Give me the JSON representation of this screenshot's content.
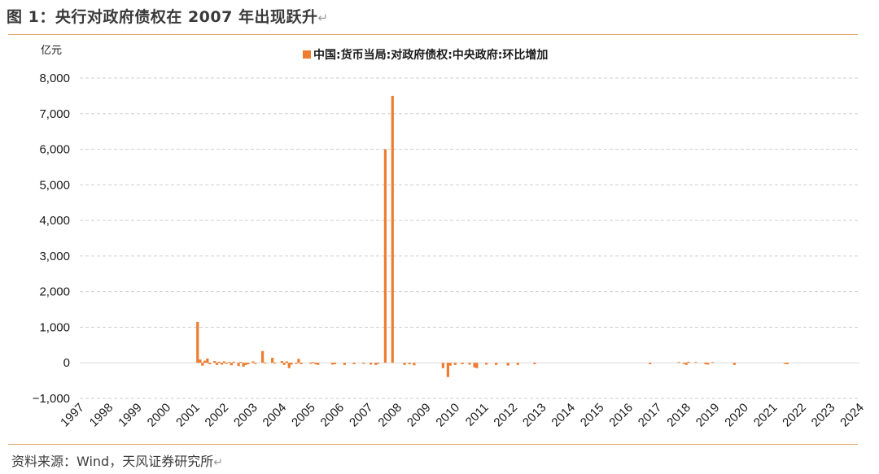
{
  "header": {
    "title": "图 1：央行对政府债权在 2007 年出现跃升",
    "return_mark": "↵"
  },
  "footer": {
    "source": "资料来源：Wind，天风证券研究所",
    "return_mark": "↵"
  },
  "colors": {
    "series": "#ED7D31",
    "grid": "#cfcfcf",
    "rule": "#e8a566"
  },
  "chart_data": {
    "type": "bar",
    "unit_label": "亿元",
    "grid": "horizontal-dashed",
    "legend_position": "top-center",
    "ylim": [
      -1000,
      8000
    ],
    "y_ticks": [
      {
        "v": 8000,
        "label": "8,000"
      },
      {
        "v": 7000,
        "label": "7,000"
      },
      {
        "v": 6000,
        "label": "6,000"
      },
      {
        "v": 5000,
        "label": "5,000"
      },
      {
        "v": 4000,
        "label": "4,000"
      },
      {
        "v": 3000,
        "label": "3,000"
      },
      {
        "v": 2000,
        "label": "2,000"
      },
      {
        "v": 1000,
        "label": "1,000"
      },
      {
        "v": 0,
        "label": "0"
      },
      {
        "v": -1000,
        "label": "−1,000"
      }
    ],
    "x_range": [
      1997,
      2024
    ],
    "x_ticks": [
      "1997",
      "1998",
      "1999",
      "2000",
      "2001",
      "2002",
      "2003",
      "2004",
      "2005",
      "2006",
      "2007",
      "2008",
      "2009",
      "2010",
      "2011",
      "2012",
      "2013",
      "2014",
      "2015",
      "2016",
      "2017",
      "2018",
      "2019",
      "2020",
      "2021",
      "2022",
      "2023",
      "2024"
    ],
    "series": [
      {
        "name": "中国:货币当局:对政府债权:中央政府:环比增加",
        "points": [
          {
            "x": 2001.08,
            "y": 1150
          },
          {
            "x": 2001.17,
            "y": 90
          },
          {
            "x": 2001.25,
            "y": -80
          },
          {
            "x": 2001.33,
            "y": 60
          },
          {
            "x": 2001.42,
            "y": 120
          },
          {
            "x": 2001.5,
            "y": -40
          },
          {
            "x": 2001.67,
            "y": 50
          },
          {
            "x": 2001.75,
            "y": -60
          },
          {
            "x": 2001.83,
            "y": 30
          },
          {
            "x": 2001.92,
            "y": -50
          },
          {
            "x": 2002.0,
            "y": 40
          },
          {
            "x": 2002.08,
            "y": -30
          },
          {
            "x": 2002.17,
            "y": 20
          },
          {
            "x": 2002.25,
            "y": -70
          },
          {
            "x": 2002.33,
            "y": 30
          },
          {
            "x": 2002.5,
            "y": -90
          },
          {
            "x": 2002.58,
            "y": 25
          },
          {
            "x": 2002.67,
            "y": -110
          },
          {
            "x": 2002.75,
            "y": -60
          },
          {
            "x": 2002.83,
            "y": -40
          },
          {
            "x": 2003.0,
            "y": 40
          },
          {
            "x": 2003.08,
            "y": -30
          },
          {
            "x": 2003.33,
            "y": 330
          },
          {
            "x": 2003.42,
            "y": -20
          },
          {
            "x": 2003.67,
            "y": 140
          },
          {
            "x": 2003.75,
            "y": -20
          },
          {
            "x": 2004.0,
            "y": 50
          },
          {
            "x": 2004.08,
            "y": -60
          },
          {
            "x": 2004.17,
            "y": 40
          },
          {
            "x": 2004.25,
            "y": -150
          },
          {
            "x": 2004.33,
            "y": -50
          },
          {
            "x": 2004.5,
            "y": -30
          },
          {
            "x": 2004.58,
            "y": 110
          },
          {
            "x": 2004.67,
            "y": -40
          },
          {
            "x": 2005.0,
            "y": -30
          },
          {
            "x": 2005.08,
            "y": 20
          },
          {
            "x": 2005.17,
            "y": -40
          },
          {
            "x": 2005.25,
            "y": -60
          },
          {
            "x": 2005.75,
            "y": -50
          },
          {
            "x": 2005.83,
            "y": -40
          },
          {
            "x": 2006.17,
            "y": -60
          },
          {
            "x": 2006.5,
            "y": -40
          },
          {
            "x": 2006.83,
            "y": -30
          },
          {
            "x": 2007.08,
            "y": -50
          },
          {
            "x": 2007.25,
            "y": -60
          },
          {
            "x": 2007.33,
            "y": -30
          },
          {
            "x": 2007.58,
            "y": 6000
          },
          {
            "x": 2007.83,
            "y": 7500
          },
          {
            "x": 2008.25,
            "y": -60
          },
          {
            "x": 2008.42,
            "y": -40
          },
          {
            "x": 2008.58,
            "y": -70
          },
          {
            "x": 2009.58,
            "y": -150
          },
          {
            "x": 2009.75,
            "y": -400
          },
          {
            "x": 2009.83,
            "y": -80
          },
          {
            "x": 2010.0,
            "y": -60
          },
          {
            "x": 2010.25,
            "y": -40
          },
          {
            "x": 2010.5,
            "y": -50
          },
          {
            "x": 2010.67,
            "y": -130
          },
          {
            "x": 2010.75,
            "y": -150
          },
          {
            "x": 2011.08,
            "y": -50
          },
          {
            "x": 2011.42,
            "y": -60
          },
          {
            "x": 2011.83,
            "y": -80
          },
          {
            "x": 2012.17,
            "y": -60
          },
          {
            "x": 2012.75,
            "y": -40
          },
          {
            "x": 2016.75,
            "y": -40
          },
          {
            "x": 2017.75,
            "y": 20
          },
          {
            "x": 2017.92,
            "y": -30
          },
          {
            "x": 2018.0,
            "y": -60
          },
          {
            "x": 2018.08,
            "y": 30
          },
          {
            "x": 2018.33,
            "y": 20
          },
          {
            "x": 2018.67,
            "y": -40
          },
          {
            "x": 2018.75,
            "y": -50
          },
          {
            "x": 2018.92,
            "y": 20
          },
          {
            "x": 2019.67,
            "y": -60
          },
          {
            "x": 2021.42,
            "y": -30
          },
          {
            "x": 2021.5,
            "y": -40
          }
        ]
      }
    ]
  }
}
